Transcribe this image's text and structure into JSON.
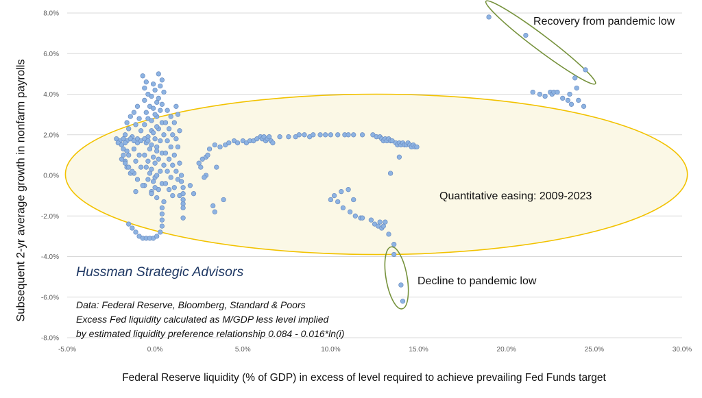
{
  "chart_data": {
    "type": "scatter",
    "xlabel": "Federal Reserve liquidity (% of GDP) in excess of level required to achieve prevailing Fed Funds target",
    "ylabel": "Subsequent  2-yr average growth in nonfarm  payrolls",
    "xlim": [
      -0.05,
      0.3
    ],
    "ylim": [
      -0.08,
      0.08
    ],
    "x_ticks": [
      "-5.0%",
      "0.0%",
      "5.0%",
      "10.0%",
      "15.0%",
      "20.0%",
      "25.0%",
      "30.0%"
    ],
    "y_ticks": [
      "-8.0%",
      "-6.0%",
      "-4.0%",
      "-2.0%",
      "0.0%",
      "2.0%",
      "4.0%",
      "6.0%",
      "8.0%"
    ],
    "grid": "horizontal",
    "point_color": "#8DB3E2",
    "annotations": {
      "qe_label": "Quantitative easing: 2009-2023",
      "recovery_label": "Recovery from pandemic low",
      "decline_label": "Decline to pandemic low",
      "brand": "Hussman Strategic Advisors",
      "source_line1": "Data: Federal Reserve, Bloomberg, Standard & Poors",
      "source_line2": "Excess Fed liquidity calculated as M/GDP less level implied",
      "source_line3": "by estimated liquidity preference relationship 0.084 - 0.016*ln(i)"
    },
    "highlight_colors": {
      "qe_ellipse_stroke": "#F2C200",
      "qe_ellipse_fill": "#FBF8E6",
      "pandemic_ellipse_stroke": "#76923C"
    },
    "series": [
      {
        "points": [
          [
            -0.007,
            0.049
          ],
          [
            -0.005,
            0.046
          ],
          [
            -0.006,
            0.043
          ],
          [
            -0.004,
            0.04
          ],
          [
            -0.006,
            0.037
          ],
          [
            -0.003,
            0.034
          ],
          [
            -0.005,
            0.031
          ],
          [
            -0.004,
            0.028
          ],
          [
            -0.006,
            0.025
          ],
          [
            -0.002,
            0.022
          ],
          [
            -0.004,
            0.019
          ],
          [
            -0.005,
            0.016
          ],
          [
            -0.003,
            0.013
          ],
          [
            -0.006,
            0.01
          ],
          [
            -0.004,
            0.007
          ],
          [
            -0.005,
            0.004
          ],
          [
            -0.003,
            0.001
          ],
          [
            -0.004,
            -0.002
          ],
          [
            -0.006,
            -0.005
          ],
          [
            -0.002,
            -0.008
          ],
          [
            0.002,
            0.05
          ],
          [
            0.004,
            0.047
          ],
          [
            0.003,
            0.044
          ],
          [
            0.005,
            0.041
          ],
          [
            0.002,
            0.038
          ],
          [
            0.004,
            0.035
          ],
          [
            0.003,
            0.032
          ],
          [
            0.001,
            0.029
          ],
          [
            0.004,
            0.026
          ],
          [
            0.002,
            0.023
          ],
          [
            0.005,
            0.02
          ],
          [
            0.003,
            0.017
          ],
          [
            0.001,
            0.014
          ],
          [
            0.004,
            0.011
          ],
          [
            0.002,
            0.008
          ],
          [
            0.005,
            0.005
          ],
          [
            0.003,
            0.002
          ],
          [
            0.0,
            -0.001
          ],
          [
            0.004,
            -0.004
          ],
          [
            0.002,
            -0.007
          ],
          [
            -0.001,
            0.045
          ],
          [
            0.0,
            0.042
          ],
          [
            -0.002,
            0.039
          ],
          [
            0.001,
            0.036
          ],
          [
            -0.001,
            0.033
          ],
          [
            0.0,
            0.03
          ],
          [
            -0.002,
            0.027
          ],
          [
            0.001,
            0.024
          ],
          [
            -0.001,
            0.021
          ],
          [
            0.0,
            0.018
          ],
          [
            -0.002,
            0.015
          ],
          [
            0.001,
            0.012
          ],
          [
            -0.001,
            0.009
          ],
          [
            0.0,
            0.006
          ],
          [
            -0.002,
            0.003
          ],
          [
            0.001,
            0.0
          ],
          [
            -0.001,
            -0.003
          ],
          [
            0.0,
            -0.006
          ],
          [
            -0.002,
            -0.009
          ],
          [
            0.001,
            -0.011
          ],
          [
            -0.01,
            0.034
          ],
          [
            -0.012,
            0.031
          ],
          [
            -0.009,
            0.028
          ],
          [
            -0.011,
            0.025
          ],
          [
            -0.008,
            0.022
          ],
          [
            -0.013,
            0.019
          ],
          [
            -0.01,
            0.016
          ],
          [
            -0.012,
            0.013
          ],
          [
            -0.009,
            0.01
          ],
          [
            -0.011,
            0.007
          ],
          [
            -0.008,
            0.004
          ],
          [
            -0.012,
            0.001
          ],
          [
            -0.01,
            -0.002
          ],
          [
            -0.007,
            -0.005
          ],
          [
            -0.011,
            -0.008
          ],
          [
            0.007,
            0.032
          ],
          [
            0.009,
            0.029
          ],
          [
            0.006,
            0.026
          ],
          [
            0.008,
            0.023
          ],
          [
            0.01,
            0.02
          ],
          [
            0.007,
            0.017
          ],
          [
            0.009,
            0.014
          ],
          [
            0.006,
            0.011
          ],
          [
            0.008,
            0.008
          ],
          [
            0.01,
            0.005
          ],
          [
            0.007,
            0.002
          ],
          [
            0.009,
            -0.001
          ],
          [
            0.006,
            -0.004
          ],
          [
            0.008,
            -0.007
          ],
          [
            0.01,
            -0.01
          ],
          [
            0.012,
            0.034
          ],
          [
            0.013,
            0.03
          ],
          [
            0.011,
            0.026
          ],
          [
            0.014,
            0.022
          ],
          [
            0.012,
            0.018
          ],
          [
            0.013,
            0.014
          ],
          [
            0.011,
            0.01
          ],
          [
            0.014,
            0.006
          ],
          [
            0.012,
            0.002
          ],
          [
            0.013,
            -0.002
          ],
          [
            0.011,
            -0.006
          ],
          [
            0.014,
            -0.01
          ],
          [
            0.016,
            -0.014
          ],
          [
            0.016,
            -0.021
          ],
          [
            -0.014,
            0.029
          ],
          [
            -0.016,
            0.026
          ],
          [
            -0.015,
            0.023
          ],
          [
            -0.017,
            0.02
          ],
          [
            -0.016,
            0.017
          ],
          [
            -0.018,
            0.013
          ],
          [
            -0.015,
            0.01
          ],
          [
            -0.017,
            0.007
          ],
          [
            -0.016,
            0.004
          ],
          [
            -0.014,
            0.001
          ],
          [
            -0.022,
            0.018
          ],
          [
            -0.02,
            0.017
          ],
          [
            -0.018,
            0.018
          ],
          [
            -0.016,
            0.017
          ],
          [
            -0.014,
            0.018
          ],
          [
            -0.012,
            0.017
          ],
          [
            -0.01,
            0.018
          ],
          [
            -0.008,
            0.017
          ],
          [
            -0.006,
            0.018
          ],
          [
            -0.004,
            0.017
          ],
          [
            -0.021,
            0.016
          ],
          [
            -0.019,
            0.015
          ],
          [
            -0.017,
            0.016
          ],
          [
            -0.019,
            0.008
          ],
          [
            -0.017,
            0.006
          ],
          [
            -0.015,
            0.004
          ],
          [
            -0.013,
            0.002
          ],
          [
            -0.018,
            0.01
          ],
          [
            -0.016,
            0.012
          ],
          [
            -0.015,
            -0.024
          ],
          [
            -0.013,
            -0.026
          ],
          [
            -0.011,
            -0.028
          ],
          [
            -0.009,
            -0.03
          ],
          [
            -0.007,
            -0.031
          ],
          [
            -0.005,
            -0.031
          ],
          [
            -0.003,
            -0.031
          ],
          [
            -0.001,
            -0.031
          ],
          [
            0.001,
            -0.03
          ],
          [
            0.003,
            -0.028
          ],
          [
            0.004,
            -0.025
          ],
          [
            0.004,
            -0.022
          ],
          [
            0.004,
            -0.019
          ],
          [
            0.004,
            -0.016
          ],
          [
            0.005,
            -0.013
          ],
          [
            0.015,
            0.0
          ],
          [
            0.015,
            -0.003
          ],
          [
            0.016,
            -0.006
          ],
          [
            0.016,
            -0.009
          ],
          [
            0.016,
            -0.012
          ],
          [
            0.016,
            -0.016
          ],
          [
            0.02,
            -0.005
          ],
          [
            0.022,
            -0.009
          ]
        ]
      },
      {
        "points": [
          [
            0.025,
            0.006
          ],
          [
            0.026,
            0.004
          ],
          [
            0.027,
            0.008
          ],
          [
            0.029,
            0.009
          ],
          [
            0.03,
            0.01
          ],
          [
            0.031,
            0.013
          ],
          [
            0.034,
            0.015
          ],
          [
            0.035,
            0.004
          ],
          [
            0.029,
            0.0
          ],
          [
            0.028,
            -0.001
          ],
          [
            0.033,
            -0.015
          ],
          [
            0.034,
            -0.018
          ],
          [
            0.039,
            -0.012
          ],
          [
            0.037,
            0.014
          ],
          [
            0.04,
            0.015
          ],
          [
            0.042,
            0.016
          ],
          [
            0.045,
            0.017
          ],
          [
            0.047,
            0.016
          ],
          [
            0.05,
            0.017
          ],
          [
            0.052,
            0.016
          ],
          [
            0.054,
            0.017
          ],
          [
            0.056,
            0.017
          ],
          [
            0.058,
            0.018
          ],
          [
            0.06,
            0.019
          ],
          [
            0.061,
            0.018
          ],
          [
            0.062,
            0.019
          ],
          [
            0.063,
            0.017
          ],
          [
            0.064,
            0.018
          ],
          [
            0.065,
            0.019
          ],
          [
            0.066,
            0.017
          ],
          [
            0.067,
            0.016
          ],
          [
            0.071,
            0.019
          ],
          [
            0.076,
            0.019
          ],
          [
            0.08,
            0.019
          ],
          [
            0.082,
            0.02
          ],
          [
            0.085,
            0.02
          ],
          [
            0.088,
            0.019
          ],
          [
            0.09,
            0.02
          ],
          [
            0.094,
            0.02
          ],
          [
            0.097,
            0.02
          ],
          [
            0.1,
            0.02
          ],
          [
            0.104,
            0.02
          ],
          [
            0.108,
            0.02
          ],
          [
            0.11,
            0.02
          ],
          [
            0.113,
            0.02
          ],
          [
            0.118,
            0.02
          ],
          [
            0.124,
            0.02
          ],
          [
            0.126,
            0.019
          ],
          [
            0.128,
            0.019
          ],
          [
            0.129,
            0.018
          ],
          [
            0.13,
            0.017
          ],
          [
            0.131,
            0.018
          ],
          [
            0.132,
            0.017
          ],
          [
            0.133,
            0.018
          ],
          [
            0.134,
            0.017
          ],
          [
            0.135,
            0.017
          ],
          [
            0.137,
            0.016
          ],
          [
            0.138,
            0.015
          ],
          [
            0.139,
            0.016
          ],
          [
            0.14,
            0.015
          ],
          [
            0.141,
            0.016
          ],
          [
            0.142,
            0.015
          ],
          [
            0.143,
            0.015
          ],
          [
            0.144,
            0.016
          ],
          [
            0.145,
            0.015
          ],
          [
            0.146,
            0.014
          ],
          [
            0.147,
            0.015
          ],
          [
            0.148,
            0.014
          ],
          [
            0.149,
            0.014
          ],
          [
            0.134,
            0.001
          ],
          [
            0.139,
            0.009
          ],
          [
            0.1,
            -0.012
          ],
          [
            0.102,
            -0.01
          ],
          [
            0.104,
            -0.013
          ],
          [
            0.106,
            -0.008
          ],
          [
            0.107,
            -0.016
          ],
          [
            0.11,
            -0.007
          ],
          [
            0.111,
            -0.018
          ],
          [
            0.113,
            -0.012
          ],
          [
            0.114,
            -0.02
          ],
          [
            0.117,
            -0.021
          ],
          [
            0.118,
            -0.021
          ],
          [
            0.123,
            -0.022
          ],
          [
            0.125,
            -0.024
          ],
          [
            0.127,
            -0.025
          ],
          [
            0.128,
            -0.023
          ],
          [
            0.129,
            -0.026
          ],
          [
            0.13,
            -0.025
          ],
          [
            0.131,
            -0.023
          ],
          [
            0.133,
            -0.029
          ],
          [
            0.136,
            -0.034
          ]
        ]
      },
      {
        "points": [
          [
            0.19,
            0.078
          ],
          [
            0.211,
            0.069
          ],
          [
            0.239,
            0.048
          ],
          [
            0.245,
            0.052
          ],
          [
            0.215,
            0.041
          ],
          [
            0.219,
            0.04
          ],
          [
            0.222,
            0.039
          ],
          [
            0.225,
            0.041
          ],
          [
            0.226,
            0.04
          ],
          [
            0.227,
            0.041
          ],
          [
            0.229,
            0.041
          ],
          [
            0.232,
            0.038
          ],
          [
            0.235,
            0.037
          ],
          [
            0.236,
            0.04
          ],
          [
            0.237,
            0.035
          ],
          [
            0.24,
            0.043
          ],
          [
            0.241,
            0.037
          ],
          [
            0.244,
            0.034
          ],
          [
            0.136,
            -0.039
          ],
          [
            0.14,
            -0.054
          ],
          [
            0.141,
            -0.062
          ]
        ]
      }
    ]
  }
}
